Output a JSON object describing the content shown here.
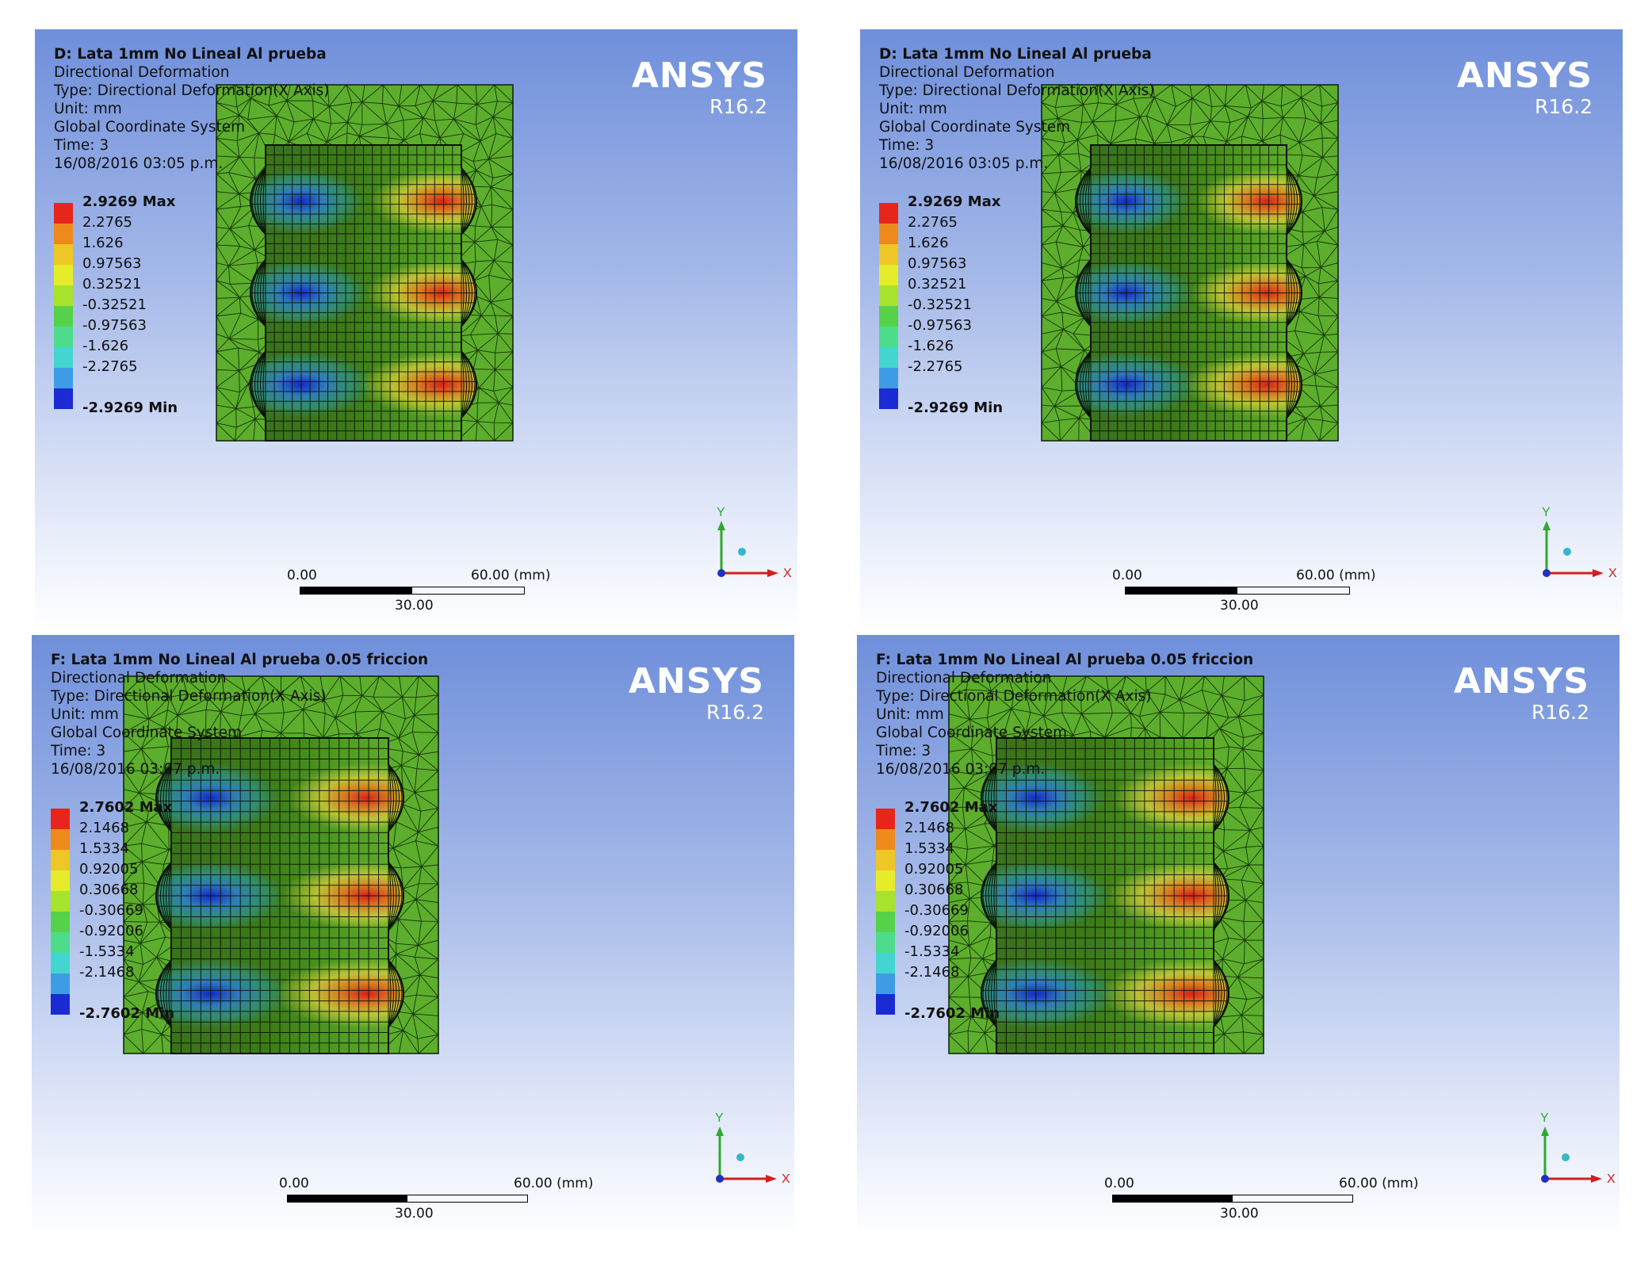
{
  "panels": [
    {
      "title": "D: Lata 1mm No Lineal Al prueba",
      "lines": [
        "Directional Deformation",
        "Type: Directional Deformation(X Axis)",
        "Unit: mm",
        "Global Coordinate System",
        "Time: 3",
        "16/08/2016 03:05 p.m."
      ],
      "legend": {
        "max": "2.9269 Max",
        "values": [
          "2.2765",
          "1.626",
          "0.97563",
          "0.32521",
          "-0.32521",
          "-0.97563",
          "-1.626",
          "-2.2765"
        ],
        "min": "-2.9269 Min"
      }
    },
    {
      "title": "D: Lata 1mm No Lineal Al prueba",
      "lines": [
        "Directional Deformation",
        "Type: Directional Deformation(X Axis)",
        "Unit: mm",
        "Global Coordinate System",
        "Time: 3",
        "16/08/2016 03:05 p.m."
      ],
      "legend": {
        "max": "2.9269 Max",
        "values": [
          "2.2765",
          "1.626",
          "0.97563",
          "0.32521",
          "-0.32521",
          "-0.97563",
          "-1.626",
          "-2.2765"
        ],
        "min": "-2.9269 Min"
      }
    },
    {
      "title": "F: Lata 1mm No Lineal Al prueba 0.05 friccion",
      "lines": [
        "Directional Deformation",
        "Type: Directional Deformation(X Axis)",
        "Unit: mm",
        "Global Coordinate System",
        "Time: 3",
        "16/08/2016 03:07 p.m."
      ],
      "legend": {
        "max": "2.7602 Max",
        "values": [
          "2.1468",
          "1.5334",
          "0.92005",
          "0.30668",
          "-0.30669",
          "-0.92006",
          "-1.5334",
          "-2.1468"
        ],
        "min": "-2.7602 Min"
      }
    },
    {
      "title": "F: Lata 1mm No Lineal Al prueba 0.05 friccion",
      "lines": [
        "Directional Deformation",
        "Type: Directional Deformation(X Axis)",
        "Unit: mm",
        "Global Coordinate System",
        "Time: 3",
        "16/08/2016 03:07 p.m."
      ],
      "legend": {
        "max": "2.7602 Max",
        "values": [
          "2.1468",
          "1.5334",
          "0.92005",
          "0.30668",
          "-0.30669",
          "-0.92006",
          "-1.5334",
          "-2.1468"
        ],
        "min": "-2.7602 Min"
      }
    }
  ],
  "brand": "ANSYS",
  "version": "R16.2",
  "scale_bar": {
    "start": "0.00",
    "end": "60.00 (mm)",
    "mid": "30.00"
  },
  "axes": {
    "x": "X",
    "y": "Y"
  },
  "legend_colors": [
    "#e8251a",
    "#ee8a1c",
    "#eec626",
    "#e6ec2a",
    "#a7e22c",
    "#55d24a",
    "#4ddc8c",
    "#43d6d0",
    "#3d9ce4",
    "#1a2bd4"
  ],
  "colors": {
    "mesh_fill": "#5cae2c",
    "mesh_line": "#0b1e08",
    "body_dark": "#3c7a18",
    "body_mid": "#4f9a22"
  }
}
